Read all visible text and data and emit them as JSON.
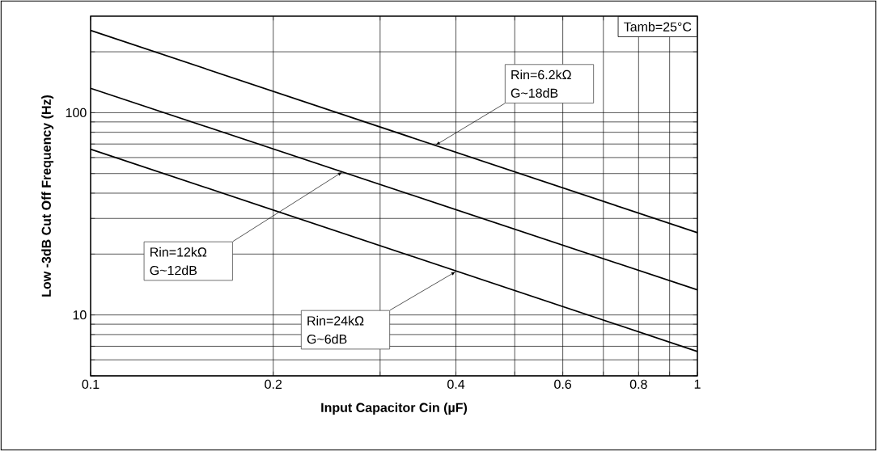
{
  "chart_data": {
    "type": "line",
    "xlabel": "Input Capacitor Cin (µF)",
    "ylabel": "Low -3dB Cut Off Frequency (Hz)",
    "log": "xy",
    "grid": true,
    "marker": "none",
    "line_style": "solid",
    "x": [
      0.1,
      1
    ],
    "series": [
      {
        "color": "#000000",
        "values": [
          255,
          25.5
        ]
      },
      {
        "color": "#000000",
        "values": [
          132,
          13.3
        ]
      },
      {
        "color": "#000000",
        "values": [
          66,
          6.6
        ]
      }
    ],
    "xlim": [
      0.1,
      1
    ],
    "ylim": [
      5,
      300
    ],
    "xticks": [
      0.1,
      0.2,
      {
        "value": 0.3,
        "label": null
      },
      0.4,
      {
        "value": 0.5,
        "label": null
      },
      0.6,
      {
        "value": 0.7,
        "label": null
      },
      0.8,
      {
        "value": 0.9,
        "label": null
      },
      1
    ],
    "yticks": [
      {
        "value": 5,
        "label": null
      },
      {
        "value": 6,
        "label": null
      },
      {
        "value": 7,
        "label": null
      },
      {
        "value": 8,
        "label": null
      },
      {
        "value": 9,
        "label": null
      },
      10,
      {
        "value": 20,
        "label": null
      },
      {
        "value": 30,
        "label": null
      },
      {
        "value": 40,
        "label": null
      },
      {
        "value": 50,
        "label": null
      },
      {
        "value": 60,
        "label": null
      },
      {
        "value": 70,
        "label": null
      },
      {
        "value": 80,
        "label": null
      },
      {
        "value": 90,
        "label": null
      },
      100,
      {
        "value": 200,
        "label": null
      }
    ],
    "annotations": [
      "Tamb=25°C",
      {
        "text": "Rin=6.2kΩ G~18dB",
        "x": 0.37,
        "y": 69
      },
      "Rin=12kΩ G~12dB",
      "Rin=24kΩ G~6dB"
    ]
  }
}
